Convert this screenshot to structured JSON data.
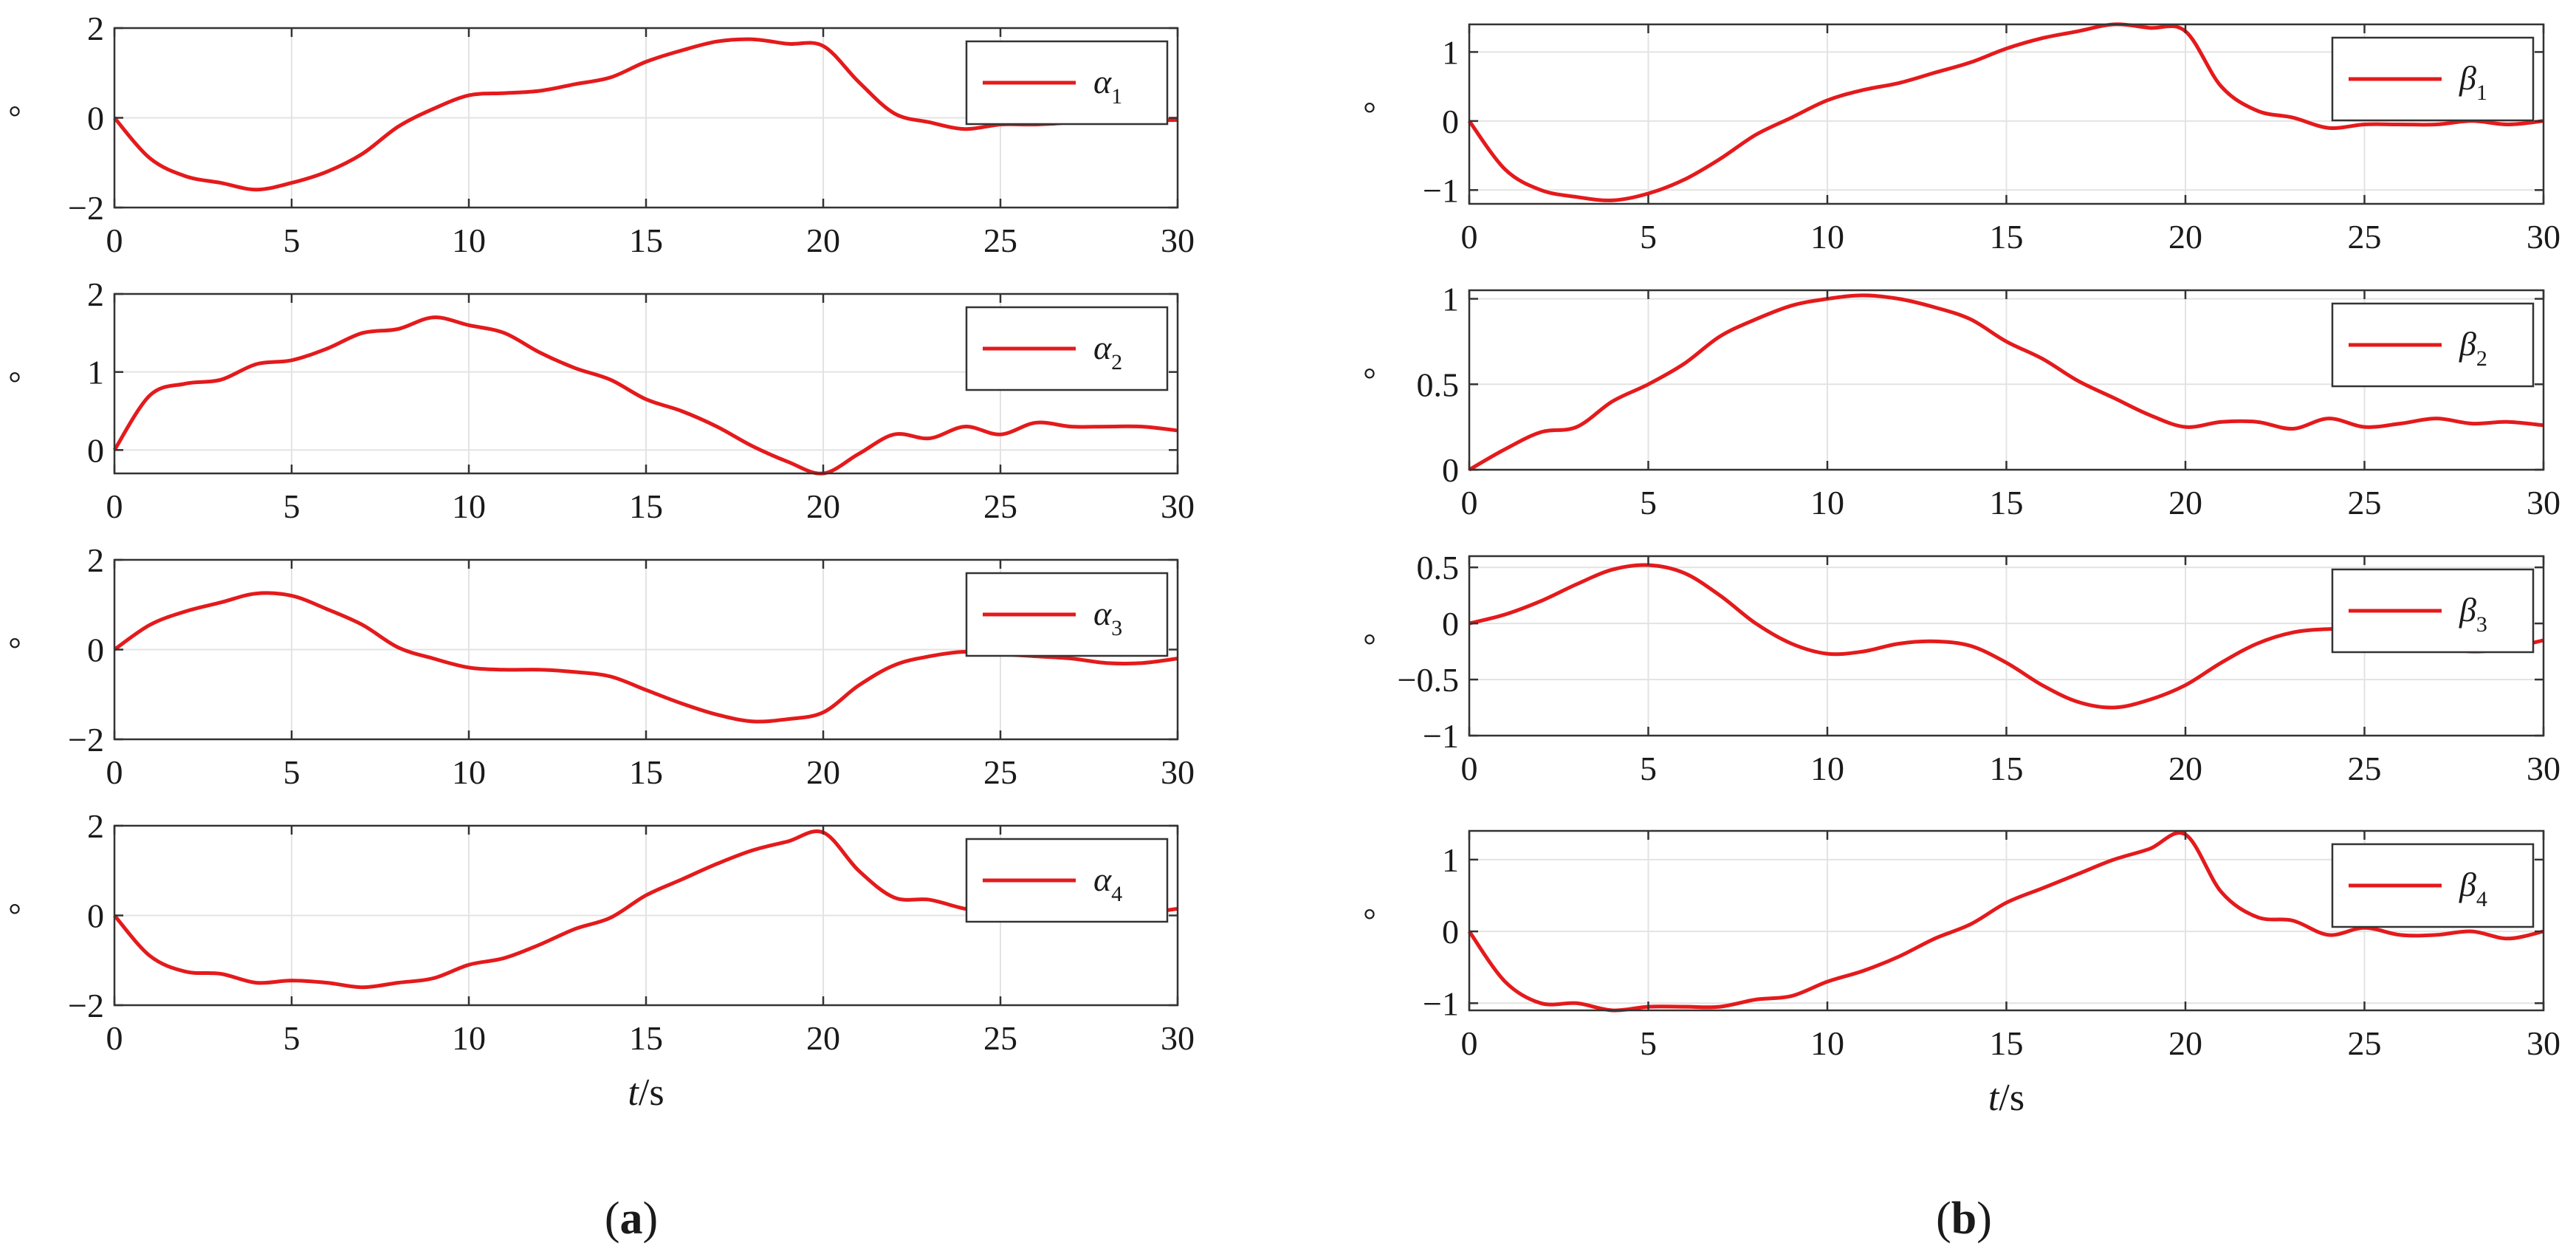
{
  "chart_data": [
    {
      "type": "line",
      "panel": "a",
      "x": [
        0,
        1,
        2,
        3,
        4,
        5,
        6,
        7,
        8,
        9,
        10,
        11,
        12,
        13,
        14,
        15,
        16,
        17,
        18,
        19,
        20,
        21,
        22,
        23,
        24,
        25,
        26,
        27,
        28,
        29,
        30
      ],
      "series": [
        {
          "name": "α",
          "subscript": "1",
          "color": "#e41a1c",
          "values": [
            0,
            -0.9,
            -1.3,
            -1.45,
            -1.6,
            -1.45,
            -1.2,
            -0.8,
            -0.2,
            0.2,
            0.5,
            0.55,
            0.6,
            0.75,
            0.9,
            1.25,
            1.5,
            1.7,
            1.75,
            1.65,
            1.6,
            0.8,
            0.1,
            -0.1,
            -0.25,
            -0.15,
            -0.15,
            -0.1,
            0.0,
            -0.05,
            -0.05
          ]
        }
      ],
      "xlabel": "",
      "ylabel": "°",
      "xlim": [
        0,
        30
      ],
      "ylim": [
        -2,
        2
      ],
      "xticks": [
        0,
        5,
        10,
        15,
        20,
        25,
        30
      ],
      "yticks": [
        -2,
        0,
        2
      ],
      "ytick_labels": [
        "−2",
        "0",
        "2"
      ],
      "grid": true,
      "legend": "top-right"
    },
    {
      "type": "line",
      "panel": "a",
      "x": [
        0,
        1,
        2,
        3,
        4,
        5,
        6,
        7,
        8,
        9,
        10,
        11,
        12,
        13,
        14,
        15,
        16,
        17,
        18,
        19,
        20,
        21,
        22,
        23,
        24,
        25,
        26,
        27,
        28,
        29,
        30
      ],
      "series": [
        {
          "name": "α",
          "subscript": "2",
          "color": "#e41a1c",
          "values": [
            0,
            0.7,
            0.85,
            0.9,
            1.1,
            1.15,
            1.3,
            1.5,
            1.55,
            1.7,
            1.6,
            1.5,
            1.25,
            1.05,
            0.9,
            0.65,
            0.5,
            0.3,
            0.05,
            -0.15,
            -0.3,
            -0.05,
            0.2,
            0.15,
            0.3,
            0.2,
            0.35,
            0.3,
            0.3,
            0.3,
            0.25
          ]
        }
      ],
      "xlabel": "",
      "ylabel": "°",
      "xlim": [
        0,
        30
      ],
      "ylim": [
        -0.3,
        2
      ],
      "xticks": [
        0,
        5,
        10,
        15,
        20,
        25,
        30
      ],
      "yticks": [
        0,
        1,
        2
      ],
      "ytick_labels": [
        "0",
        "1",
        "2"
      ],
      "grid": true,
      "legend": "top-right"
    },
    {
      "type": "line",
      "panel": "a",
      "x": [
        0,
        1,
        2,
        3,
        4,
        5,
        6,
        7,
        8,
        9,
        10,
        11,
        12,
        13,
        14,
        15,
        16,
        17,
        18,
        19,
        20,
        21,
        22,
        23,
        24,
        25,
        26,
        27,
        28,
        29,
        30
      ],
      "series": [
        {
          "name": "α",
          "subscript": "3",
          "color": "#e41a1c",
          "values": [
            0,
            0.55,
            0.85,
            1.05,
            1.25,
            1.2,
            0.9,
            0.55,
            0.05,
            -0.2,
            -0.4,
            -0.45,
            -0.45,
            -0.5,
            -0.6,
            -0.9,
            -1.2,
            -1.45,
            -1.6,
            -1.55,
            -1.4,
            -0.8,
            -0.35,
            -0.15,
            -0.05,
            -0.1,
            -0.15,
            -0.2,
            -0.3,
            -0.3,
            -0.2
          ]
        }
      ],
      "xlabel": "",
      "ylabel": "°",
      "xlim": [
        0,
        30
      ],
      "ylim": [
        -2,
        2
      ],
      "xticks": [
        0,
        5,
        10,
        15,
        20,
        25,
        30
      ],
      "yticks": [
        -2,
        0,
        2
      ],
      "ytick_labels": [
        "−2",
        "0",
        "2"
      ],
      "grid": true,
      "legend": "top-right"
    },
    {
      "type": "line",
      "panel": "a",
      "x": [
        0,
        1,
        2,
        3,
        4,
        5,
        6,
        7,
        8,
        9,
        10,
        11,
        12,
        13,
        14,
        15,
        16,
        17,
        18,
        19,
        20,
        21,
        22,
        23,
        24,
        25,
        26,
        27,
        28,
        29,
        30
      ],
      "series": [
        {
          "name": "α",
          "subscript": "4",
          "color": "#e41a1c",
          "values": [
            0,
            -0.9,
            -1.25,
            -1.3,
            -1.5,
            -1.45,
            -1.5,
            -1.6,
            -1.5,
            -1.4,
            -1.1,
            -0.95,
            -0.65,
            -0.3,
            -0.05,
            0.45,
            0.8,
            1.15,
            1.45,
            1.65,
            1.85,
            1.0,
            0.4,
            0.35,
            0.15,
            0.05,
            0.15,
            0.05,
            0.05,
            0.05,
            0.15
          ]
        }
      ],
      "xlabel": "t/s",
      "ylabel": "°",
      "xlim": [
        0,
        30
      ],
      "ylim": [
        -2,
        2
      ],
      "xticks": [
        0,
        5,
        10,
        15,
        20,
        25,
        30
      ],
      "yticks": [
        -2,
        0,
        2
      ],
      "ytick_labels": [
        "−2",
        "0",
        "2"
      ],
      "grid": true,
      "legend": "top-right"
    },
    {
      "type": "line",
      "panel": "b",
      "x": [
        0,
        1,
        2,
        3,
        4,
        5,
        6,
        7,
        8,
        9,
        10,
        11,
        12,
        13,
        14,
        15,
        16,
        17,
        18,
        19,
        20,
        21,
        22,
        23,
        24,
        25,
        26,
        27,
        28,
        29,
        30
      ],
      "series": [
        {
          "name": "β",
          "subscript": "1",
          "color": "#e41a1c",
          "values": [
            0,
            -0.7,
            -1.0,
            -1.1,
            -1.15,
            -1.05,
            -0.85,
            -0.55,
            -0.2,
            0.05,
            0.3,
            0.45,
            0.55,
            0.7,
            0.85,
            1.05,
            1.2,
            1.3,
            1.4,
            1.35,
            1.3,
            0.5,
            0.15,
            0.05,
            -0.1,
            -0.05,
            -0.05,
            -0.05,
            0.0,
            -0.05,
            0.0
          ]
        }
      ],
      "xlabel": "",
      "ylabel": "°",
      "xlim": [
        0,
        30
      ],
      "ylim": [
        -1.2,
        1.4
      ],
      "xticks": [
        0,
        5,
        10,
        15,
        20,
        25,
        30
      ],
      "yticks": [
        -1,
        0,
        1
      ],
      "ytick_labels": [
        "−1",
        "0",
        "1"
      ],
      "grid": true,
      "legend": "top-right"
    },
    {
      "type": "line",
      "panel": "b",
      "x": [
        0,
        1,
        2,
        3,
        4,
        5,
        6,
        7,
        8,
        9,
        10,
        11,
        12,
        13,
        14,
        15,
        16,
        17,
        18,
        19,
        20,
        21,
        22,
        23,
        24,
        25,
        26,
        27,
        28,
        29,
        30
      ],
      "series": [
        {
          "name": "β",
          "subscript": "2",
          "color": "#e41a1c",
          "values": [
            0,
            0.12,
            0.22,
            0.25,
            0.4,
            0.5,
            0.62,
            0.78,
            0.88,
            0.96,
            1.0,
            1.02,
            1.0,
            0.95,
            0.88,
            0.75,
            0.65,
            0.52,
            0.42,
            0.32,
            0.25,
            0.28,
            0.28,
            0.24,
            0.3,
            0.25,
            0.27,
            0.3,
            0.27,
            0.28,
            0.26
          ]
        }
      ],
      "xlabel": "",
      "ylabel": "°",
      "xlim": [
        0,
        30
      ],
      "ylim": [
        0,
        1.05
      ],
      "xticks": [
        0,
        5,
        10,
        15,
        20,
        25,
        30
      ],
      "yticks": [
        0,
        0.5,
        1
      ],
      "ytick_labels": [
        "0",
        "0.5",
        "1"
      ],
      "grid": true,
      "legend": "top-right"
    },
    {
      "type": "line",
      "panel": "b",
      "x": [
        0,
        1,
        2,
        3,
        4,
        5,
        6,
        7,
        8,
        9,
        10,
        11,
        12,
        13,
        14,
        15,
        16,
        17,
        18,
        19,
        20,
        21,
        22,
        23,
        24,
        25,
        26,
        27,
        28,
        29,
        30
      ],
      "series": [
        {
          "name": "β",
          "subscript": "3",
          "color": "#e41a1c",
          "values": [
            0,
            0.08,
            0.2,
            0.35,
            0.48,
            0.52,
            0.45,
            0.25,
            0.0,
            -0.18,
            -0.27,
            -0.25,
            -0.18,
            -0.16,
            -0.2,
            -0.35,
            -0.55,
            -0.7,
            -0.75,
            -0.68,
            -0.55,
            -0.35,
            -0.18,
            -0.08,
            -0.05,
            -0.05,
            -0.1,
            -0.2,
            -0.25,
            -0.22,
            -0.15
          ]
        }
      ],
      "xlabel": "",
      "ylabel": "°",
      "xlim": [
        0,
        30
      ],
      "ylim": [
        -1,
        0.6
      ],
      "xticks": [
        0,
        5,
        10,
        15,
        20,
        25,
        30
      ],
      "yticks": [
        -1,
        -0.5,
        0,
        0.5
      ],
      "ytick_labels": [
        "−1",
        "−0.5",
        "0",
        "0.5"
      ],
      "grid": true,
      "legend": "top-right"
    },
    {
      "type": "line",
      "panel": "b",
      "x": [
        0,
        1,
        2,
        3,
        4,
        5,
        6,
        7,
        8,
        9,
        10,
        11,
        12,
        13,
        14,
        15,
        16,
        17,
        18,
        19,
        20,
        21,
        22,
        23,
        24,
        25,
        26,
        27,
        28,
        29,
        30
      ],
      "series": [
        {
          "name": "β",
          "subscript": "4",
          "color": "#e41a1c",
          "values": [
            0,
            -0.7,
            -1.0,
            -1.0,
            -1.1,
            -1.05,
            -1.05,
            -1.05,
            -0.95,
            -0.9,
            -0.7,
            -0.55,
            -0.35,
            -0.1,
            0.1,
            0.4,
            0.6,
            0.8,
            1.0,
            1.15,
            1.35,
            0.55,
            0.2,
            0.15,
            -0.05,
            0.05,
            -0.05,
            -0.05,
            0.0,
            -0.1,
            0.0
          ]
        }
      ],
      "xlabel": "t/s",
      "ylabel": "°",
      "xlim": [
        0,
        30
      ],
      "ylim": [
        -1.1,
        1.4
      ],
      "xticks": [
        0,
        5,
        10,
        15,
        20,
        25,
        30
      ],
      "yticks": [
        -1,
        0,
        1
      ],
      "ytick_labels": [
        "−1",
        "0",
        "1"
      ],
      "grid": true,
      "legend": "top-right"
    }
  ],
  "panel_labels": [
    {
      "open": "(",
      "letter": "a",
      "close": ")"
    },
    {
      "open": "(",
      "letter": "b",
      "close": ")"
    }
  ]
}
